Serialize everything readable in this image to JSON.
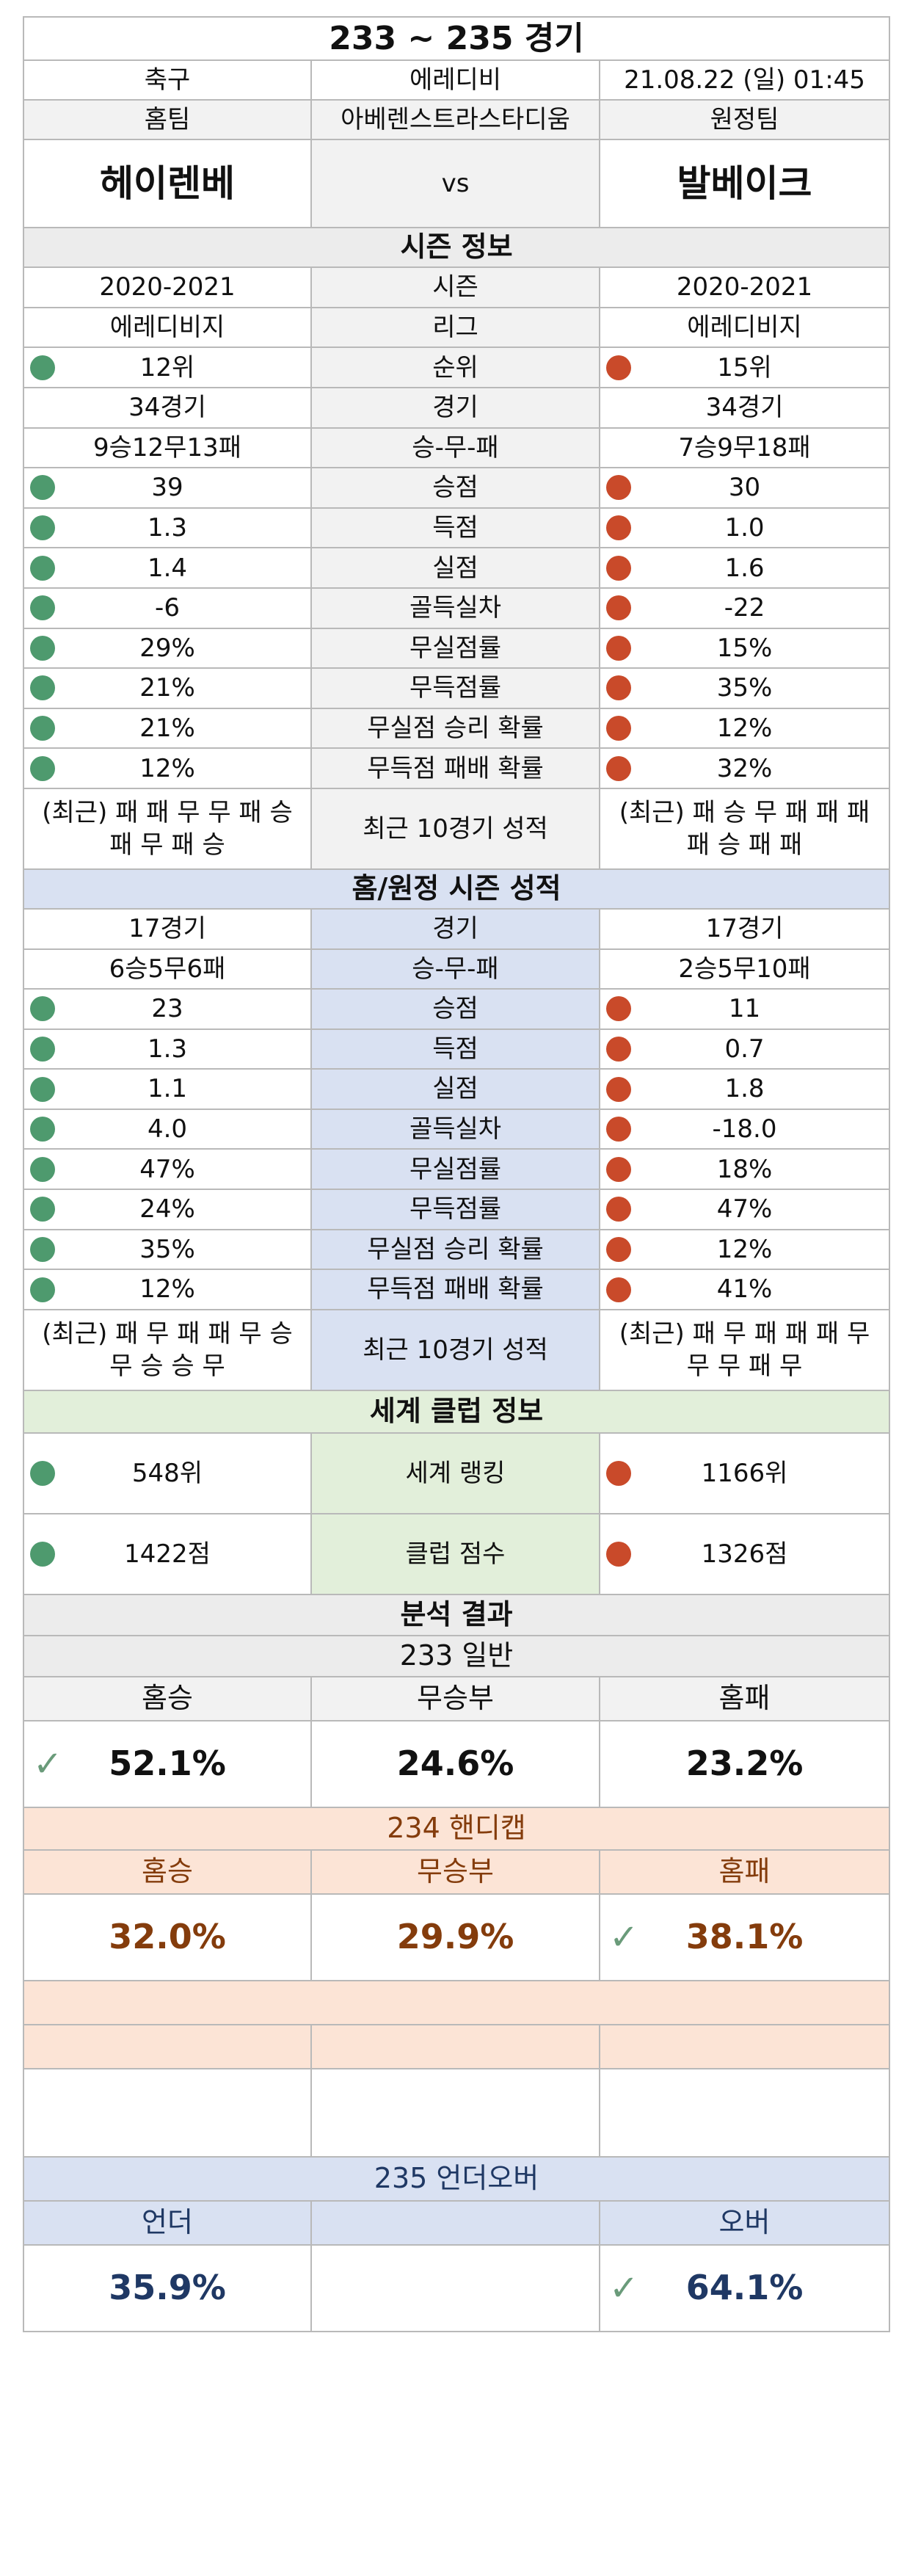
{
  "title": "233 ~ 235 경기",
  "info": {
    "sport": "축구",
    "league": "에레디비",
    "datetime": "21.08.22 (일) 01:45"
  },
  "venue_row": {
    "home_label": "홈팀",
    "stadium": "아베렌스트라스타디움",
    "away_label": "원정팀"
  },
  "teams": {
    "home": "헤이렌베",
    "vs": "vs",
    "away": "발베이크"
  },
  "season": {
    "header": "시즌 정보",
    "rows": [
      {
        "label": "시즌",
        "home": "2020-2021",
        "away": "2020-2021",
        "home_dot": "",
        "away_dot": ""
      },
      {
        "label": "리그",
        "home": "에레디비지",
        "away": "에레디비지",
        "home_dot": "",
        "away_dot": ""
      },
      {
        "label": "순위",
        "home": "12위",
        "away": "15위",
        "home_dot": "green",
        "away_dot": "red"
      },
      {
        "label": "경기",
        "home": "34경기",
        "away": "34경기",
        "home_dot": "",
        "away_dot": ""
      },
      {
        "label": "승-무-패",
        "home": "9승12무13패",
        "away": "7승9무18패",
        "home_dot": "",
        "away_dot": ""
      },
      {
        "label": "승점",
        "home": "39",
        "away": "30",
        "home_dot": "green",
        "away_dot": "red"
      },
      {
        "label": "득점",
        "home": "1.3",
        "away": "1.0",
        "home_dot": "green",
        "away_dot": "red"
      },
      {
        "label": "실점",
        "home": "1.4",
        "away": "1.6",
        "home_dot": "green",
        "away_dot": "red"
      },
      {
        "label": "골득실차",
        "home": "-6",
        "away": "-22",
        "home_dot": "green",
        "away_dot": "red"
      },
      {
        "label": "무실점률",
        "home": "29%",
        "away": "15%",
        "home_dot": "green",
        "away_dot": "red"
      },
      {
        "label": "무득점률",
        "home": "21%",
        "away": "35%",
        "home_dot": "green",
        "away_dot": "red"
      },
      {
        "label": "무실점 승리 확률",
        "home": "21%",
        "away": "12%",
        "home_dot": "green",
        "away_dot": "red"
      },
      {
        "label": "무득점 패배 확률",
        "home": "12%",
        "away": "32%",
        "home_dot": "green",
        "away_dot": "red"
      }
    ],
    "recent": {
      "label": "최근 10경기 성적",
      "home": "(최근) 패 패 무 무 패 승 패 무 패 승",
      "away": "(최근) 패 승 무 패 패 패 패 승 패 패"
    }
  },
  "homeaway": {
    "header": "홈/원정 시즌 성적",
    "rows": [
      {
        "label": "경기",
        "home": "17경기",
        "away": "17경기",
        "home_dot": "",
        "away_dot": ""
      },
      {
        "label": "승-무-패",
        "home": "6승5무6패",
        "away": "2승5무10패",
        "home_dot": "",
        "away_dot": ""
      },
      {
        "label": "승점",
        "home": "23",
        "away": "11",
        "home_dot": "green",
        "away_dot": "red"
      },
      {
        "label": "득점",
        "home": "1.3",
        "away": "0.7",
        "home_dot": "green",
        "away_dot": "red"
      },
      {
        "label": "실점",
        "home": "1.1",
        "away": "1.8",
        "home_dot": "green",
        "away_dot": "red"
      },
      {
        "label": "골득실차",
        "home": "4.0",
        "away": "-18.0",
        "home_dot": "green",
        "away_dot": "red"
      },
      {
        "label": "무실점률",
        "home": "47%",
        "away": "18%",
        "home_dot": "green",
        "away_dot": "red"
      },
      {
        "label": "무득점률",
        "home": "24%",
        "away": "47%",
        "home_dot": "green",
        "away_dot": "red"
      },
      {
        "label": "무실점 승리 확률",
        "home": "35%",
        "away": "12%",
        "home_dot": "green",
        "away_dot": "red"
      },
      {
        "label": "무득점 패배 확률",
        "home": "12%",
        "away": "41%",
        "home_dot": "green",
        "away_dot": "red"
      }
    ],
    "recent": {
      "label": "최근 10경기 성적",
      "home": "(최근) 패 무 패 패 무 승 무 승 승 무",
      "away": "(최근) 패 무 패 패 패 무 무 무 패 무"
    }
  },
  "world": {
    "header": "세계 클럽 정보",
    "rows": [
      {
        "label": "세계 랭킹",
        "home": "548위",
        "away": "1166위",
        "home_dot": "green",
        "away_dot": "red"
      },
      {
        "label": "클럽 점수",
        "home": "1422점",
        "away": "1326점",
        "home_dot": "green",
        "away_dot": "red"
      }
    ]
  },
  "analysis": {
    "header": "분석 결과",
    "general": {
      "header": "233 일반",
      "labels": [
        "홈승",
        "무승부",
        "홈패"
      ],
      "values": [
        "52.1%",
        "24.6%",
        "23.2%"
      ],
      "check_index": 0
    },
    "handicap": {
      "header": "234 핸디캡",
      "labels": [
        "홈승",
        "무승부",
        "홈패"
      ],
      "values": [
        "32.0%",
        "29.9%",
        "38.1%"
      ],
      "check_index": 2
    },
    "underover": {
      "header": "235 언더오버",
      "labels": [
        "언더",
        "",
        "오버"
      ],
      "values": [
        "35.9%",
        "",
        "64.1%"
      ],
      "check_index": 2
    }
  },
  "colors": {
    "green_dot": "#4e9a6e",
    "red_dot": "#c94a2a",
    "check": "#6a9b7a",
    "handicap_text": "#843c0c",
    "underover_text": "#1f3864"
  },
  "icons": {
    "check": "check-icon",
    "home_dot": "green-circle-icon",
    "away_dot": "red-circle-icon"
  }
}
